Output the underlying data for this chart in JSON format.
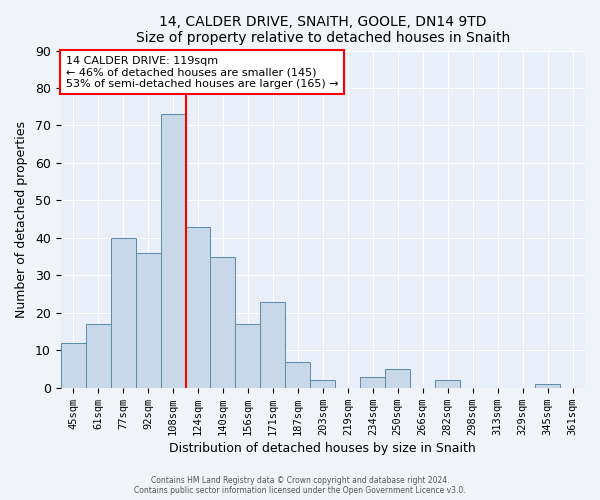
{
  "title": "14, CALDER DRIVE, SNAITH, GOOLE, DN14 9TD",
  "subtitle": "Size of property relative to detached houses in Snaith",
  "xlabel": "Distribution of detached houses by size in Snaith",
  "ylabel": "Number of detached properties",
  "bar_labels": [
    "45sqm",
    "61sqm",
    "77sqm",
    "92sqm",
    "108sqm",
    "124sqm",
    "140sqm",
    "156sqm",
    "171sqm",
    "187sqm",
    "203sqm",
    "219sqm",
    "234sqm",
    "250sqm",
    "266sqm",
    "282sqm",
    "298sqm",
    "313sqm",
    "329sqm",
    "345sqm",
    "361sqm"
  ],
  "bar_values": [
    12,
    17,
    40,
    36,
    73,
    43,
    35,
    17,
    23,
    7,
    2,
    0,
    3,
    5,
    0,
    2,
    0,
    0,
    0,
    1,
    0
  ],
  "bar_width": 1.0,
  "bar_color": "#c8d8e8",
  "bar_edgecolor": "#5a8aaa",
  "ylim": [
    0,
    90
  ],
  "yticks": [
    0,
    10,
    20,
    30,
    40,
    50,
    60,
    70,
    80,
    90
  ],
  "vline_color": "red",
  "vline_x_idx": 4.5,
  "annotation_title": "14 CALDER DRIVE: 119sqm",
  "annotation_line1": "← 46% of detached houses are smaller (145)",
  "annotation_line2": "53% of semi-detached houses are larger (165) →",
  "footer1": "Contains HM Land Registry data © Crown copyright and database right 2024.",
  "footer2": "Contains public sector information licensed under the Open Government Licence v3.0.",
  "background_color": "#f0f4f8",
  "plot_background": "#e8eff8"
}
